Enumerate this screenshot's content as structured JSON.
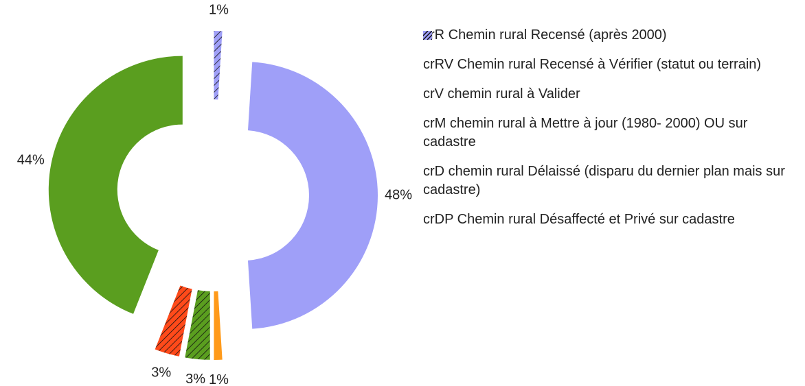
{
  "chart_data": {
    "type": "donut",
    "categories": [
      "crR Chemin rural Recensé (après 2000)",
      "crRV Chemin rural Recensé à Vérifier (statut ou terrain)",
      "crV chemin rural à Valider",
      "crM chemin rural à Mettre à jour (1980- 2000) OU sur cadastre",
      "crD chemin rural Délaissé (disparu du dernier plan mais sur cadastre)",
      "crDP Chemin rural Désaffecté et Privé sur cadastre"
    ],
    "values": [
      44,
      3,
      3,
      1,
      48,
      1
    ],
    "value_labels": [
      "44%",
      "3%",
      "3%",
      "1%",
      "48%",
      "1%"
    ],
    "colors": [
      "#5a9e1f",
      "#ff4a1a",
      "#5a9e1f",
      "#ff9a1a",
      "#9f9ff8",
      "#9f9ff8"
    ],
    "hatched": [
      false,
      true,
      true,
      false,
      false,
      true
    ],
    "legend": "right"
  }
}
